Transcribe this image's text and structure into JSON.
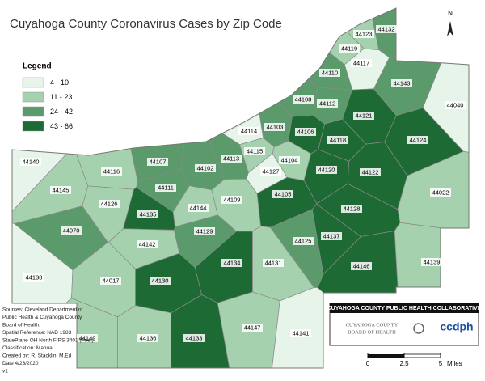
{
  "title": "Cuyahoga County Coronavirus Cases by Zip Code",
  "north": "N",
  "legend": {
    "title": "Legend",
    "items": [
      {
        "label": "4 - 10",
        "color": "#e6f4ea"
      },
      {
        "label": "11 - 23",
        "color": "#a6d1ae"
      },
      {
        "label": "24 - 42",
        "color": "#5b9a6a"
      },
      {
        "label": "43 - 66",
        "color": "#1e6a35"
      }
    ]
  },
  "zips": [
    {
      "label": "44123",
      "color": "#a6d1ae"
    },
    {
      "label": "44132",
      "color": "#5b9a6a"
    },
    {
      "label": "44119",
      "color": "#a6d1ae"
    },
    {
      "label": "44117",
      "color": "#e6f4ea"
    },
    {
      "label": "44110",
      "color": "#5b9a6a"
    },
    {
      "label": "44143",
      "color": "#5b9a6a"
    },
    {
      "label": "44040",
      "color": "#e6f4ea"
    },
    {
      "label": "44108",
      "color": "#5b9a6a"
    },
    {
      "label": "44112",
      "color": "#5b9a6a"
    },
    {
      "label": "44121",
      "color": "#1e6a35"
    },
    {
      "label": "44114",
      "color": "#e6f4ea"
    },
    {
      "label": "44103",
      "color": "#5b9a6a"
    },
    {
      "label": "44106",
      "color": "#1e6a35"
    },
    {
      "label": "44118",
      "color": "#1e6a35"
    },
    {
      "label": "44124",
      "color": "#1e6a35"
    },
    {
      "label": "44140",
      "color": "#e6f4ea"
    },
    {
      "label": "44107",
      "color": "#5b9a6a"
    },
    {
      "label": "44116",
      "color": "#a6d1ae"
    },
    {
      "label": "44102",
      "color": "#5b9a6a"
    },
    {
      "label": "44113",
      "color": "#5b9a6a"
    },
    {
      "label": "44115",
      "color": "#a6d1ae"
    },
    {
      "label": "44104",
      "color": "#a6d1ae"
    },
    {
      "label": "44127",
      "color": "#e6f4ea"
    },
    {
      "label": "44120",
      "color": "#1e6a35"
    },
    {
      "label": "44122",
      "color": "#1e6a35"
    },
    {
      "label": "44022",
      "color": "#a6d1ae"
    },
    {
      "label": "44145",
      "color": "#a6d1ae"
    },
    {
      "label": "44111",
      "color": "#5b9a6a"
    },
    {
      "label": "44105",
      "color": "#1e6a35"
    },
    {
      "label": "44126",
      "color": "#a6d1ae"
    },
    {
      "label": "44109",
      "color": "#a6d1ae"
    },
    {
      "label": "44144",
      "color": "#a6d1ae"
    },
    {
      "label": "44135",
      "color": "#1e6a35"
    },
    {
      "label": "44128",
      "color": "#1e6a35"
    },
    {
      "label": "44070",
      "color": "#5b9a6a"
    },
    {
      "label": "44129",
      "color": "#5b9a6a"
    },
    {
      "label": "44142",
      "color": "#a6d1ae"
    },
    {
      "label": "44125",
      "color": "#5b9a6a"
    },
    {
      "label": "44137",
      "color": "#1e6a35"
    },
    {
      "label": "44134",
      "color": "#1e6a35"
    },
    {
      "label": "44131",
      "color": "#a6d1ae"
    },
    {
      "label": "44146",
      "color": "#1e6a35"
    },
    {
      "label": "44139",
      "color": "#a6d1ae"
    },
    {
      "label": "44138",
      "color": "#e6f4ea"
    },
    {
      "label": "44017",
      "color": "#a6d1ae"
    },
    {
      "label": "44130",
      "color": "#1e6a35"
    },
    {
      "label": "44149",
      "color": "#a6d1ae"
    },
    {
      "label": "44136",
      "color": "#a6d1ae"
    },
    {
      "label": "44133",
      "color": "#1e6a35"
    },
    {
      "label": "44147",
      "color": "#a6d1ae"
    },
    {
      "label": "44141",
      "color": "#e6f4ea"
    }
  ],
  "sources": [
    "Sources: Cleveland Department of",
    "Public Health & Cuyahoga County",
    "Board of Health.",
    "Spatial Reference: NAD 1983",
    "StatePlane OH North FIPS 3401 (Feet)",
    "Classification: Manual",
    "Created by: R. Stacklin, M.Ed",
    "Date 4/23/2020",
    "v1"
  ],
  "collaborative": {
    "title": "CUYAHOGA COUNTY PUBLIC HEALTH COLLABORATIVE",
    "board_line1": "CUYAHOGA COUNTY",
    "board_line2": "BOARD OF HEALTH",
    "ccdph": "ccdph"
  },
  "scale": {
    "ticks": [
      0,
      2.5,
      5
    ],
    "unit": "Miles"
  }
}
